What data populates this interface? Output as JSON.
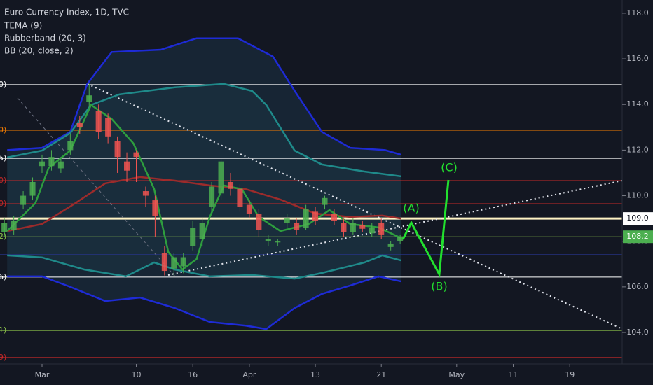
{
  "chart_data": {
    "type": "candlestick",
    "title": "Euro Currency Index, 1D, TVC",
    "legend_items": [
      "TEMA (9)",
      "Rubberband (20, 3)",
      "BB (20, close, 2)"
    ],
    "up_color": "#4caf50",
    "down_color": "#ef5350",
    "x": [
      -4,
      -3,
      -2,
      -1,
      0,
      1,
      2,
      3,
      4,
      5,
      6,
      7,
      8,
      9,
      10,
      11,
      12,
      13,
      14,
      15,
      16,
      17,
      18,
      19,
      20,
      21,
      22,
      23,
      24,
      25,
      26,
      27,
      28,
      29,
      30,
      31,
      32,
      33,
      34,
      35,
      36,
      37,
      38
    ],
    "open": [
      108.4,
      108.5,
      109.6,
      110.0,
      111.3,
      111.3,
      111.2,
      112.0,
      113.2,
      114.1,
      113.7,
      113.4,
      112.4,
      111.5,
      111.9,
      110.2,
      109.8,
      107.5,
      106.8,
      106.9,
      107.8,
      108.1,
      109.5,
      110.1,
      110.6,
      110.3,
      109.6,
      109.2,
      108.0,
      107.95,
      108.8,
      108.8,
      108.6,
      109.3,
      109.6,
      109.2,
      108.8,
      108.4,
      108.7,
      108.35,
      108.8,
      107.75,
      108.0
    ],
    "high": [
      109.0,
      109.1,
      110.2,
      110.8,
      111.8,
      112.0,
      111.7,
      112.7,
      113.5,
      114.9,
      114.0,
      113.6,
      112.6,
      111.9,
      112.0,
      110.4,
      110.0,
      107.8,
      107.5,
      107.5,
      108.9,
      109.0,
      110.6,
      111.6,
      111.0,
      110.5,
      109.8,
      109.4,
      108.3,
      108.1,
      109.2,
      109.0,
      109.6,
      109.5,
      110.0,
      109.4,
      109.0,
      109.0,
      108.9,
      108.8,
      109.0,
      108.0,
      108.3
    ],
    "low": [
      108.2,
      108.3,
      109.4,
      109.8,
      111.0,
      111.1,
      111.0,
      111.8,
      112.7,
      113.9,
      112.5,
      112.3,
      111.0,
      110.6,
      110.6,
      109.5,
      108.2,
      106.5,
      106.5,
      106.6,
      107.6,
      107.8,
      109.3,
      109.8,
      110.0,
      109.3,
      109.0,
      108.2,
      107.8,
      107.8,
      108.6,
      108.3,
      108.5,
      108.7,
      109.4,
      108.7,
      108.2,
      108.3,
      108.4,
      108.2,
      108.1,
      107.6,
      107.9
    ],
    "close": [
      108.8,
      108.9,
      110.0,
      110.6,
      111.5,
      111.7,
      111.5,
      112.4,
      113.0,
      114.4,
      112.8,
      112.6,
      111.7,
      111.1,
      111.7,
      110.0,
      109.1,
      106.7,
      107.3,
      107.3,
      108.6,
      108.8,
      110.4,
      111.5,
      110.3,
      109.5,
      109.2,
      108.5,
      108.1,
      108.0,
      109.0,
      108.5,
      109.4,
      108.9,
      109.9,
      108.9,
      108.4,
      108.8,
      108.55,
      108.6,
      108.3,
      107.9,
      108.2
    ],
    "indicators": [
      {
        "color": "#1e2bd6",
        "x": [
          -3.7,
          0,
          3.0,
          4.8,
          7.4,
          12.6,
          16.4,
          20.8,
          24.5,
          26.8,
          29.7,
          32.7,
          36.4,
          38.1
        ],
        "values": [
          112.0,
          112.1,
          112.8,
          114.9,
          116.3,
          116.4,
          116.9,
          116.9,
          116.1,
          114.6,
          112.8,
          112.1,
          112.0,
          111.8
        ]
      },
      {
        "color": "#1e2bd6",
        "x": [
          -3.7,
          0,
          3.0,
          6.7,
          10.4,
          14.1,
          17.8,
          21.6,
          23.8,
          26.8,
          29.7,
          32.7,
          35.7,
          38.1
        ],
        "values": [
          106.46,
          106.46,
          106.0,
          105.38,
          105.53,
          105.07,
          104.46,
          104.3,
          104.15,
          105.07,
          105.69,
          106.06,
          106.46,
          106.24
        ]
      },
      {
        "color": "#1f8a8a",
        "x": [
          -3.7,
          0,
          3.0,
          5.2,
          8.2,
          14.1,
          19.3,
          22.3,
          23.8,
          26.8,
          29.7,
          34.2,
          38.1
        ],
        "values": [
          111.68,
          111.98,
          112.75,
          113.98,
          114.44,
          114.75,
          114.9,
          114.59,
          113.98,
          111.98,
          111.37,
          111.06,
          110.85
        ]
      },
      {
        "color": "#1f8a8a",
        "x": [
          -3.7,
          0,
          4.5,
          8.9,
          11.9,
          14.1,
          17.8,
          22.3,
          26.8,
          29.7,
          34.2,
          36.1,
          38.1
        ],
        "values": [
          107.38,
          107.29,
          106.76,
          106.46,
          107.07,
          106.76,
          106.46,
          106.52,
          106.36,
          106.61,
          107.07,
          107.38,
          107.16
        ]
      },
      {
        "color": "#9c2b2b",
        "x": [
          -3.7,
          0,
          3.0,
          6.7,
          10.4,
          14.1,
          17.8,
          21.6,
          25.3,
          29.0,
          32.7,
          36.1,
          38.1
        ],
        "values": [
          108.45,
          108.76,
          109.53,
          110.54,
          110.82,
          110.66,
          110.45,
          110.29,
          109.83,
          109.22,
          109.07,
          109.13,
          109.0
        ]
      },
      {
        "color": "#2e9e3e",
        "x": [
          -3.7,
          -0.7,
          0.7,
          3.0,
          5.2,
          7.4,
          9.7,
          11.9,
          13.4,
          14.9,
          16.4,
          17.8,
          19.3,
          21.2,
          23.0,
          25.3,
          28.3,
          30.5,
          32.7,
          35.7,
          38.1
        ],
        "values": [
          108.45,
          109.68,
          111.22,
          111.98,
          113.98,
          113.36,
          112.29,
          110.29,
          107.53,
          106.76,
          107.22,
          109.07,
          110.45,
          110.29,
          109.07,
          108.45,
          108.76,
          109.37,
          108.76,
          108.61,
          108.14
        ]
      }
    ],
    "levels": [
      {
        "value": 114.87,
        "color": "#ffffff",
        "label": "0)"
      },
      {
        "value": 112.87,
        "color": "#f57c00",
        "label": "0)"
      },
      {
        "value": 111.64,
        "color": "#ffffff",
        "label": "5)"
      },
      {
        "value": 110.66,
        "color": "#c62828",
        "label": "0)"
      },
      {
        "value": 109.65,
        "color": "#c62828",
        "label": "0)"
      },
      {
        "value": 109.0,
        "color": "#fff3c4"
      },
      {
        "value": 108.2,
        "color": "#8bc34a",
        "label": "2)"
      },
      {
        "value": 107.41,
        "color": "#283593"
      },
      {
        "value": 106.43,
        "color": "#ffffff",
        "label": "6)"
      },
      {
        "value": 104.09,
        "color": "#8bc34a",
        "label": "1)"
      },
      {
        "value": 102.9,
        "color": "#c62828",
        "label": "9)"
      }
    ],
    "price_labels": [
      {
        "value": 109.0,
        "label": "109.0",
        "color": "#ffffff"
      },
      {
        "value": 108.2,
        "label": "108.2",
        "color": "#4caf50"
      }
    ],
    "annotations": [
      "(A)",
      "(B)",
      "(C)"
    ],
    "xlim": [
      -4.46,
      61.56
    ],
    "xticks": [
      {
        "value": 0,
        "label": "Mar"
      },
      10,
      16,
      {
        "value": 22,
        "label": "Apr"
      },
      13,
      21,
      {
        "value": 44,
        "label": "May"
      },
      11,
      19
    ],
    "xtick_values": [
      0,
      10,
      16,
      22,
      29,
      36,
      44,
      50,
      56
    ],
    "ylim": [
      102.62,
      118.58
    ],
    "yticks": [
      {
        "value": 104,
        "label": "104.0"
      },
      {
        "value": 106,
        "label": "106.0"
      },
      {
        "value": 108,
        "label": "108.0"
      },
      {
        "value": 110,
        "label": "110.0"
      },
      {
        "value": 112,
        "label": "112.0"
      },
      {
        "value": 114,
        "label": "114.0"
      },
      {
        "value": 116,
        "label": "116.0"
      },
      {
        "value": 118,
        "label": "118.0"
      }
    ]
  }
}
